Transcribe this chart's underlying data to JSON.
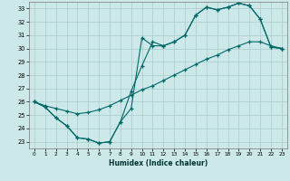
{
  "xlabel": "Humidex (Indice chaleur)",
  "bg_color": "#cce8e8",
  "grid_color": "#aacccc",
  "line_color": "#006868",
  "xlim": [
    -0.5,
    23.5
  ],
  "ylim": [
    22.5,
    33.5
  ],
  "xticks": [
    0,
    1,
    2,
    3,
    4,
    5,
    6,
    7,
    8,
    9,
    10,
    11,
    12,
    13,
    14,
    15,
    16,
    17,
    18,
    19,
    20,
    21,
    22,
    23
  ],
  "yticks": [
    23,
    24,
    25,
    26,
    27,
    28,
    29,
    30,
    31,
    32,
    33
  ],
  "line1_x": [
    0,
    1,
    2,
    3,
    4,
    5,
    6,
    7,
    8,
    9,
    10,
    11,
    12,
    13,
    14,
    15,
    16,
    17,
    18,
    19,
    20,
    21,
    22,
    23
  ],
  "line1_y": [
    26.0,
    25.6,
    24.8,
    24.2,
    23.3,
    23.2,
    22.9,
    23.0,
    24.5,
    25.5,
    30.8,
    30.2,
    30.2,
    30.5,
    31.0,
    32.5,
    33.1,
    32.9,
    33.1,
    33.4,
    33.2,
    32.2,
    30.1,
    30.0
  ],
  "line2_x": [
    0,
    1,
    2,
    3,
    4,
    5,
    6,
    7,
    8,
    9,
    10,
    11,
    12,
    13,
    14,
    15,
    16,
    17,
    18,
    19,
    20,
    21,
    22,
    23
  ],
  "line2_y": [
    26.0,
    25.6,
    24.8,
    24.2,
    23.3,
    23.2,
    22.9,
    23.0,
    24.5,
    26.8,
    28.7,
    30.5,
    30.2,
    30.5,
    31.0,
    32.5,
    33.1,
    32.9,
    33.1,
    33.4,
    33.2,
    32.2,
    30.1,
    30.0
  ],
  "line3_x": [
    0,
    1,
    2,
    3,
    4,
    5,
    6,
    7,
    8,
    9,
    10,
    11,
    12,
    13,
    14,
    15,
    16,
    17,
    18,
    19,
    20,
    21,
    22,
    23
  ],
  "line3_y": [
    26.0,
    25.7,
    25.5,
    25.3,
    25.1,
    25.2,
    25.4,
    25.7,
    26.1,
    26.5,
    26.9,
    27.2,
    27.6,
    28.0,
    28.4,
    28.8,
    29.2,
    29.5,
    29.9,
    30.2,
    30.5,
    30.5,
    30.2,
    30.0
  ]
}
